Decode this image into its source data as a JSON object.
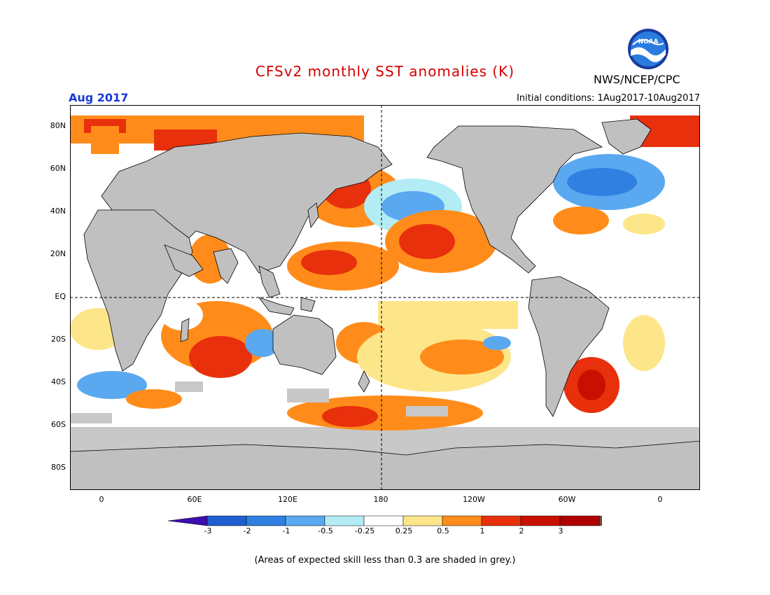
{
  "title": "CFSv2 monthly SST anomalies (K)",
  "month": "Aug 2017",
  "initial_conditions": "Initial conditions: 1Aug2017-10Aug2017",
  "agency": "NWS/NCEP/CPC",
  "logo_text": "NOAA",
  "lat_labels": [
    "80N",
    "60N",
    "40N",
    "20N",
    "EQ",
    "20S",
    "40S",
    "60S",
    "80S"
  ],
  "lon_labels": [
    "0",
    "60E",
    "120E",
    "180",
    "120W",
    "60W",
    "0"
  ],
  "colorbar": {
    "labels": [
      "-3",
      "-2",
      "-1",
      "-0.5",
      "-0.25",
      "0.25",
      "0.5",
      "1",
      "2",
      "3"
    ],
    "colors": [
      "#3b0fb0",
      "#1e5fd0",
      "#2f80e0",
      "#5aa8f0",
      "#b4ecf5",
      "#ffffff",
      "#fde68a",
      "#ff8c1a",
      "#e8300c",
      "#c81000",
      "#b00000",
      "#7a4a3a"
    ],
    "grey": "#c0c0c0"
  },
  "note": "(Areas of expected skill less than 0.3 are shaded in grey.)"
}
